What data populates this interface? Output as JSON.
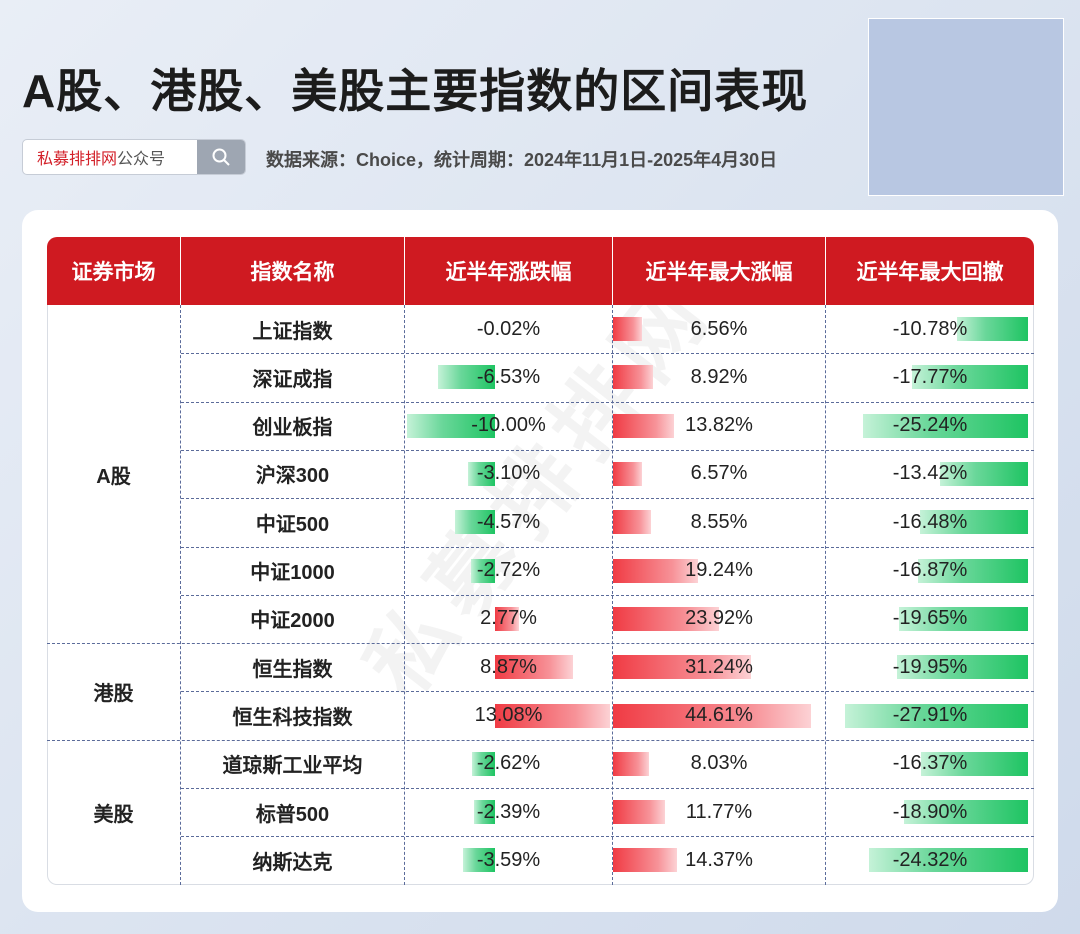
{
  "title": "A股、港股、美股主要指数的区间表现",
  "search": {
    "brand": "私募排排网",
    "suffix": "公众号"
  },
  "source": "数据来源：Choice，统计周期：2024年11月1日-2025年4月30日",
  "watermark": "私募排排网",
  "headers": [
    "证券市场",
    "指数名称",
    "近半年涨跌幅",
    "近半年最大涨幅",
    "近半年最大回撤"
  ],
  "markets": [
    "A股",
    "港股",
    "美股"
  ],
  "rows": [
    {
      "name": "上证指数",
      "chg": "-0.02%",
      "maxup": "6.56%",
      "maxdd": "-10.78%",
      "chg_v": -0.02,
      "maxup_v": 6.56,
      "maxdd_v": -10.78
    },
    {
      "name": "深证成指",
      "chg": "-6.53%",
      "maxup": "8.92%",
      "maxdd": "-17.77%",
      "chg_v": -6.53,
      "maxup_v": 8.92,
      "maxdd_v": -17.77
    },
    {
      "name": "创业板指",
      "chg": "-10.00%",
      "maxup": "13.82%",
      "maxdd": "-25.24%",
      "chg_v": -10.0,
      "maxup_v": 13.82,
      "maxdd_v": -25.24
    },
    {
      "name": "沪深300",
      "chg": "-3.10%",
      "maxup": "6.57%",
      "maxdd": "-13.42%",
      "chg_v": -3.1,
      "maxup_v": 6.57,
      "maxdd_v": -13.42
    },
    {
      "name": "中证500",
      "chg": "-4.57%",
      "maxup": "8.55%",
      "maxdd": "-16.48%",
      "chg_v": -4.57,
      "maxup_v": 8.55,
      "maxdd_v": -16.48
    },
    {
      "name": "中证1000",
      "chg": "-2.72%",
      "maxup": "19.24%",
      "maxdd": "-16.87%",
      "chg_v": -2.72,
      "maxup_v": 19.24,
      "maxdd_v": -16.87
    },
    {
      "name": "中证2000",
      "chg": "2.77%",
      "maxup": "23.92%",
      "maxdd": "-19.65%",
      "chg_v": 2.77,
      "maxup_v": 23.92,
      "maxdd_v": -19.65
    },
    {
      "name": "恒生指数",
      "chg": "8.87%",
      "maxup": "31.24%",
      "maxdd": "-19.95%",
      "chg_v": 8.87,
      "maxup_v": 31.24,
      "maxdd_v": -19.95
    },
    {
      "name": "恒生科技指数",
      "chg": "13.08%",
      "maxup": "44.61%",
      "maxdd": "-27.91%",
      "chg_v": 13.08,
      "maxup_v": 44.61,
      "maxdd_v": -27.91
    },
    {
      "name": "道琼斯工业平均",
      "chg": "-2.62%",
      "maxup": "8.03%",
      "maxdd": "-16.37%",
      "chg_v": -2.62,
      "maxup_v": 8.03,
      "maxdd_v": -16.37
    },
    {
      "name": "标普500",
      "chg": "-2.39%",
      "maxup": "11.77%",
      "maxdd": "-18.90%",
      "chg_v": -2.39,
      "maxup_v": 11.77,
      "maxdd_v": -18.9
    },
    {
      "name": "纳斯达克",
      "chg": "-3.59%",
      "maxup": "14.37%",
      "maxdd": "-24.32%",
      "chg_v": -3.59,
      "maxup_v": 14.37,
      "maxdd_v": -24.32
    }
  ],
  "colors": {
    "header_red": "#cf1a21",
    "positive": "#f03b44",
    "negative": "#1ec462",
    "brand": "#d32029"
  }
}
